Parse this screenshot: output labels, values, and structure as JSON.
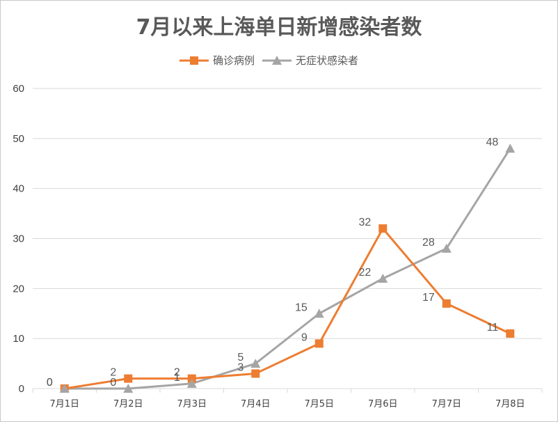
{
  "chart_data": {
    "type": "line",
    "title": "7月以来上海单日新增感染者数",
    "xlabel": "",
    "ylabel": "",
    "categories": [
      "7月1日",
      "7月2日",
      "7月3日",
      "7月4日",
      "7月5日",
      "7月6日",
      "7月7日",
      "7月8日"
    ],
    "ylim": [
      0,
      60
    ],
    "yticks": [
      0,
      10,
      20,
      30,
      40,
      50,
      60
    ],
    "grid": true,
    "legend_position": "top",
    "series": [
      {
        "name": "确诊病例",
        "color": "#ED7D31",
        "marker": "square",
        "values": [
          0,
          2,
          2,
          3,
          9,
          32,
          17,
          11
        ]
      },
      {
        "name": "无症状感染者",
        "color": "#A5A5A5",
        "marker": "triangle",
        "values": [
          0,
          0,
          1,
          5,
          15,
          22,
          28,
          48
        ]
      }
    ]
  }
}
